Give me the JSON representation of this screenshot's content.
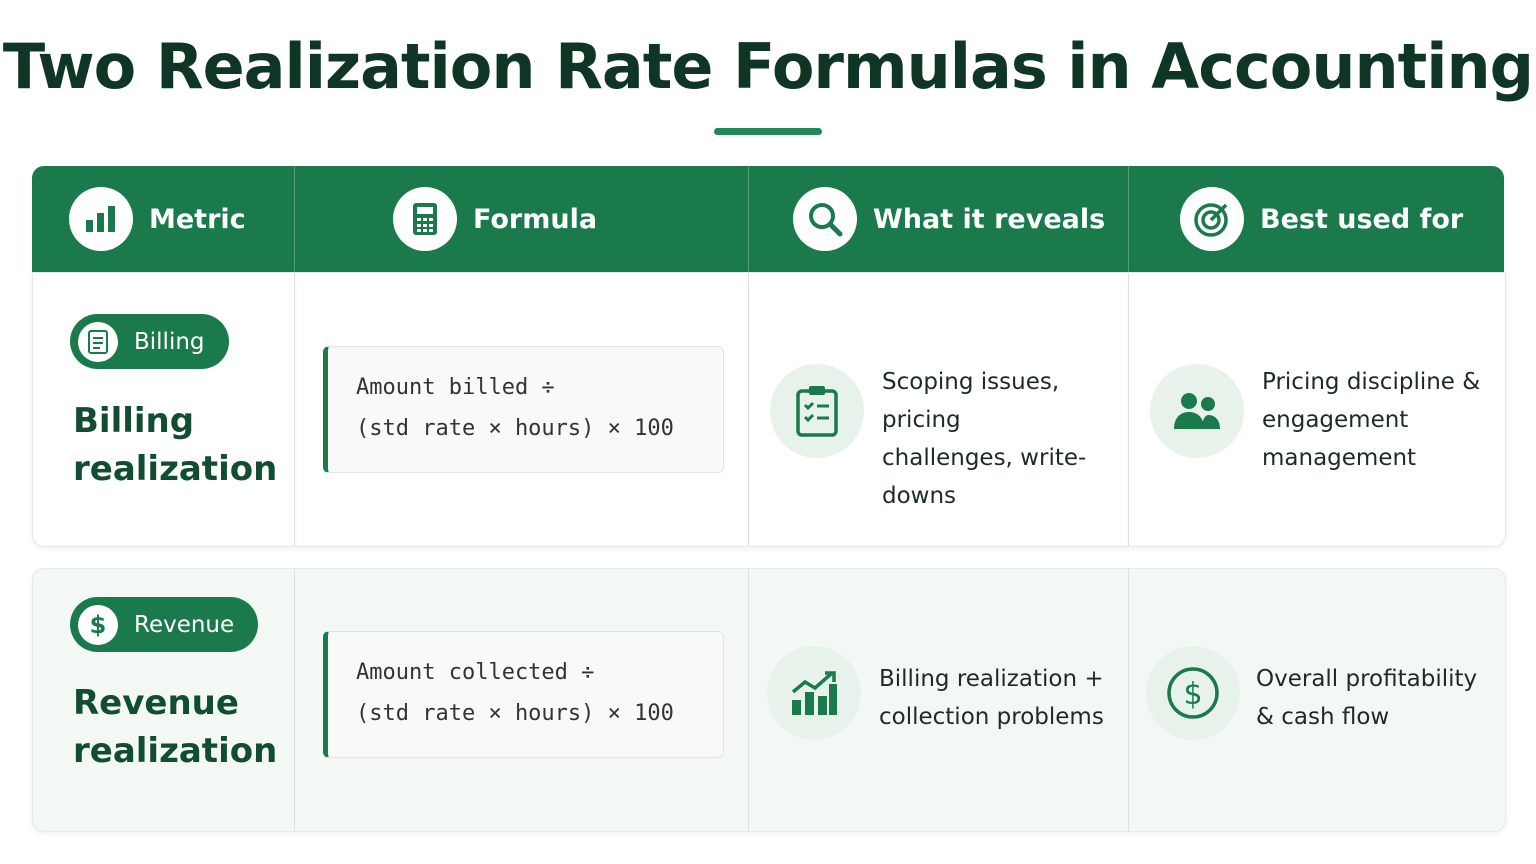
{
  "title": "Two Realization Rate Formulas in Accounting",
  "table": {
    "headers": [
      "Metric",
      "Formula",
      "What it reveals",
      "Best used for"
    ],
    "rows": [
      {
        "badge": "Billing",
        "metric": "Billing realization",
        "formula": [
          "Amount billed ÷",
          "(std rate × hours) × 100"
        ],
        "reveals": "Scoping issues, pricing challenges, write-downs",
        "best_for": "Pricing discipline & engagement management"
      },
      {
        "badge": "Revenue",
        "metric": "Revenue realization",
        "formula": [
          "Amount collected ÷",
          "(std rate × hours) × 100"
        ],
        "reveals": "Billing realization + collection problems",
        "best_for": "Overall profitability & cash flow"
      }
    ]
  }
}
